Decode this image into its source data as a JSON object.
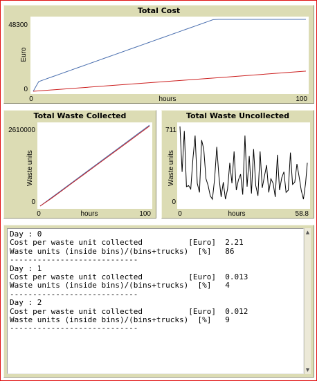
{
  "charts": {
    "cost": {
      "title": "Total Cost",
      "xlabel": "hours",
      "ylabel": "Euro",
      "xmin_label": "0",
      "xmax_label": "100",
      "ymin_label": "0",
      "ymax_label": "48300"
    },
    "collected": {
      "title": "Total Waste Collected",
      "xlabel": "hours",
      "ylabel": "Waste units",
      "xmin_label": "0",
      "xmax_label": "100",
      "ymin_label": "0",
      "ymax_label": "2610000"
    },
    "uncollected": {
      "title": "Total Waste Uncollected",
      "xlabel": "hours",
      "ylabel": "Waste units",
      "xmin_label": "0",
      "xmax_label": "58.8",
      "ymin_label": "0",
      "ymax_label": "711"
    }
  },
  "output": {
    "text": "Day : 0\nCost per waste unit collected          [Euro]  2.21\nWaste units (inside bins)/(bins+trucks)  [%]   86\n----------------------------\nDay : 1\nCost per waste unit collected          [Euro]  0.013\nWaste units (inside bins)/(bins+trucks)  [%]   4\n----------------------------\nDay : 2\nCost per waste unit collected          [Euro]  0.012\nWaste units (inside bins)/(bins+trucks)  [%]   9\n----------------------------"
  },
  "chart_data": [
    {
      "type": "line",
      "title": "Total Cost",
      "xlabel": "hours",
      "ylabel": "Euro",
      "xlim": [
        0,
        100
      ],
      "ylim": [
        0,
        48300
      ],
      "series_colors": [
        "#4a6faf",
        "#cc1f1f"
      ],
      "series": [
        {
          "x": [
            0,
            2,
            4,
            6,
            8,
            10,
            12,
            14,
            16,
            18,
            20,
            22,
            24,
            26,
            28,
            30,
            32,
            34,
            36,
            38,
            40,
            42,
            44,
            46,
            48,
            50,
            52,
            54,
            56,
            58,
            60,
            62,
            64,
            66,
            68,
            70,
            72,
            74,
            76,
            78,
            80,
            82,
            84,
            86,
            88,
            90,
            92,
            94,
            96,
            98,
            100
          ],
          "values": [
            0,
            6500,
            7800,
            9100,
            10400,
            11700,
            13000,
            14300,
            15600,
            16900,
            18200,
            19500,
            20800,
            22100,
            23400,
            24700,
            26000,
            27300,
            28600,
            29900,
            31200,
            32500,
            33800,
            35100,
            36400,
            37700,
            39000,
            40300,
            41600,
            42900,
            44200,
            45500,
            46800,
            48100,
            48300,
            48300,
            48300,
            48300,
            48300,
            48300,
            48300,
            48300,
            48300,
            48300,
            48300,
            48300,
            48300,
            48300,
            48300,
            48300,
            48300
          ]
        },
        {
          "x": [
            0,
            10,
            20,
            30,
            40,
            50,
            60,
            70,
            80,
            90,
            100
          ],
          "values": [
            0,
            1350,
            2700,
            4050,
            5400,
            6750,
            8100,
            9450,
            10800,
            12150,
            13500
          ]
        }
      ]
    },
    {
      "type": "line",
      "title": "Total Waste Collected",
      "xlabel": "hours",
      "ylabel": "Waste units",
      "xlim": [
        0,
        100
      ],
      "ylim": [
        0,
        2610000
      ],
      "series_colors": [
        "#4a6faf",
        "#cc1f1f"
      ],
      "series": [
        {
          "x": [
            0,
            10,
            20,
            30,
            40,
            50,
            60,
            70,
            80,
            90,
            100
          ],
          "values": [
            0,
            261000,
            522000,
            783000,
            1044000,
            1305000,
            1566000,
            1827000,
            2088000,
            2349000,
            2610000
          ]
        },
        {
          "x": [
            0,
            10,
            20,
            30,
            40,
            50,
            60,
            70,
            80,
            90,
            100
          ],
          "values": [
            0,
            240000,
            500000,
            760000,
            1020000,
            1280000,
            1540000,
            1800000,
            2060000,
            2320000,
            2580000
          ]
        }
      ]
    },
    {
      "type": "line",
      "title": "Total Waste Uncollected",
      "xlabel": "hours",
      "ylabel": "Waste units",
      "xlim": [
        0,
        58.8
      ],
      "ylim": [
        0,
        711
      ],
      "series_colors": [
        "#000000"
      ],
      "series": [
        {
          "x": [
            0,
            1,
            2,
            3,
            4,
            5,
            6,
            7,
            8,
            9,
            10,
            11,
            12,
            13,
            14,
            15,
            16,
            17,
            18,
            19,
            20,
            21,
            22,
            23,
            24,
            25,
            26,
            27,
            28,
            29,
            30,
            31,
            32,
            33,
            34,
            35,
            36,
            37,
            38,
            39,
            40,
            41,
            42,
            43,
            44,
            45,
            46,
            47,
            48,
            49,
            50,
            51,
            52,
            53,
            54,
            55,
            56,
            57,
            58,
            58.8
          ],
          "values": [
            700,
            300,
            660,
            170,
            180,
            150,
            420,
            620,
            200,
            120,
            580,
            500,
            240,
            180,
            90,
            60,
            240,
            520,
            260,
            80,
            210,
            60,
            150,
            380,
            200,
            480,
            140,
            230,
            280,
            100,
            620,
            170,
            440,
            110,
            500,
            180,
            90,
            480,
            160,
            260,
            360,
            120,
            240,
            200,
            80,
            450,
            140,
            250,
            300,
            120,
            140,
            470,
            190,
            210,
            370,
            260,
            140,
            60,
            200,
            380
          ]
        }
      ]
    }
  ]
}
